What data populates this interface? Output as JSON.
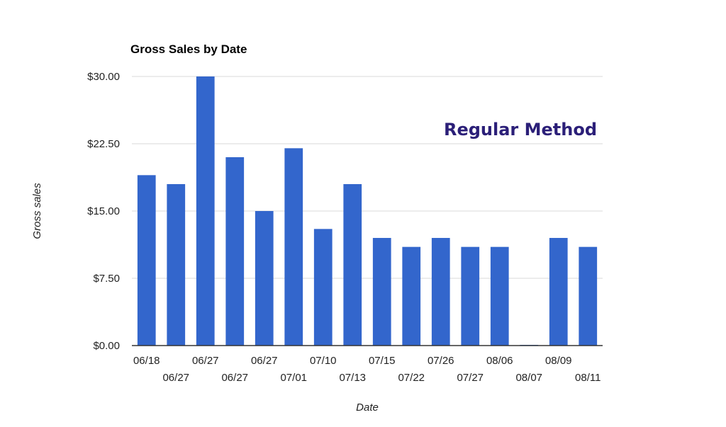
{
  "chart_data": {
    "type": "bar",
    "title": "Gross Sales by Date",
    "xlabel": "Date",
    "ylabel": "Gross sales",
    "annotation": "Regular Method",
    "categories": [
      "06/18",
      "06/27",
      "06/27",
      "06/27",
      "06/27",
      "07/01",
      "07/10",
      "07/13",
      "07/15",
      "07/22",
      "07/26",
      "07/27",
      "08/06",
      "08/07",
      "08/09",
      "08/11"
    ],
    "values": [
      19,
      18,
      30,
      21,
      15,
      22,
      13,
      18,
      12,
      11,
      12,
      11,
      11,
      0.05,
      12,
      11
    ],
    "ylim": [
      0,
      30
    ],
    "yticks": [
      0,
      7.5,
      15,
      22.5,
      30
    ],
    "ytick_labels": [
      "$0.00",
      "$7.50",
      "$15.00",
      "$22.50",
      "$30.00"
    ],
    "grid": true,
    "legend": "none",
    "colors": {
      "bar": "#3366cc",
      "annotation": "#2b1f78",
      "grid": "#d9d9d9",
      "axis": "#333333"
    }
  }
}
